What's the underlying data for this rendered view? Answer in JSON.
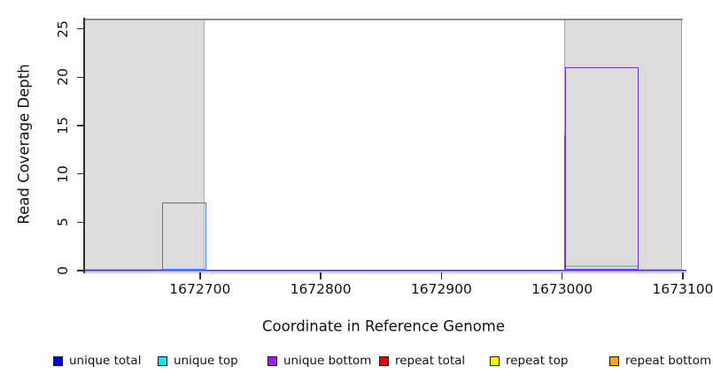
{
  "chart_data": {
    "type": "area",
    "title": "",
    "xlabel": "Coordinate in Reference Genome",
    "ylabel": "Read Coverage Depth",
    "xlim": [
      1672604,
      1673103
    ],
    "ylim": [
      0,
      26
    ],
    "grid": false,
    "x_ticks": [
      1672700,
      1672800,
      1672900,
      1673000,
      1673100
    ],
    "y_ticks": [
      0,
      5,
      10,
      15,
      20,
      25
    ],
    "legend_position": "bottom",
    "legend": [
      {
        "label": "unique total",
        "color": "#0000f0"
      },
      {
        "label": "unique top",
        "color": "#00eeee"
      },
      {
        "label": "unique bottom",
        "color": "#a01ff0"
      },
      {
        "label": "repeat total",
        "color": "#f00000"
      },
      {
        "label": "repeat top",
        "color": "#ffff00"
      },
      {
        "label": "repeat bottom",
        "color": "#ffa500"
      }
    ],
    "masked_regions": [
      {
        "start": 1672604,
        "end": 1672704
      },
      {
        "start": 1673002,
        "end": 1673100
      }
    ],
    "coverage_features": [
      {
        "name": "total-coverage-top-line",
        "depth": 26,
        "start": 1672604,
        "end": 1673100
      },
      {
        "name": "unique-total-block",
        "start": 1672669,
        "end": 1672706,
        "depth": 7
      },
      {
        "name": "unique-bottom-block",
        "start": 1673003,
        "end": 1673064,
        "depth": 21
      },
      {
        "name": "unique-total-step",
        "x": 1673002,
        "from": 0,
        "to": 14
      },
      {
        "name": "repeat-total-zero-segment",
        "start": 1672669,
        "end": 1672705,
        "depth": 0
      },
      {
        "name": "green-zero-segment",
        "start": 1673003,
        "end": 1673064,
        "depth": 0
      },
      {
        "name": "zero-baseline",
        "start": 1672604,
        "end": 1673103,
        "depth": 0
      }
    ],
    "render_items": [
      {
        "name": "masked-region-left",
        "type": "fillrect",
        "x0": 1672604,
        "x1": 1672704,
        "y0": 0,
        "y1": 26,
        "fill": "#dcdcdc",
        "color": "#a9a9a9",
        "lw": 1
      },
      {
        "name": "masked-region-right",
        "type": "fillrect",
        "x0": 1673002,
        "x1": 1673100,
        "y0": 0,
        "y1": 26,
        "fill": "#dcdcdc",
        "color": "#a9a9a9",
        "lw": 1
      },
      {
        "name": "total-coverage-top-line",
        "type": "hline",
        "x0": 1672604,
        "x1": 1673100,
        "y": 26,
        "color": "#8c8c8c",
        "lw": 1.5
      },
      {
        "name": "zero-baseline-halo",
        "type": "hline",
        "x0": 1672604,
        "x1": 1673103,
        "y": -0.25,
        "color": "#c0b8f4",
        "lw": 1.2
      },
      {
        "name": "zero-baseline",
        "type": "hline",
        "x0": 1672604,
        "x1": 1673103,
        "y": 0,
        "color": "#6156dd",
        "lw": 2
      },
      {
        "name": "repeat-total-zero-segment",
        "type": "hline",
        "x0": 1672669,
        "x1": 1672705,
        "y": 0.1,
        "color": "#e06060",
        "lw": 1.8
      },
      {
        "name": "green-zero-segment",
        "type": "hline",
        "x0": 1673003,
        "x1": 1673064,
        "y": 0.45,
        "color": "#8ccf8c",
        "lw": 1.5
      },
      {
        "name": "unique-total-step",
        "type": "vline",
        "x": 1673002,
        "y0": 0,
        "y1": 14,
        "color": "#5049e9",
        "lw": 1.6
      },
      {
        "name": "unique-total-block",
        "type": "rect",
        "x0": 1672669,
        "x1": 1672706,
        "y0": 0,
        "y1": 7,
        "color": "#347af8",
        "lw": 1.8
      },
      {
        "name": "unique-bottom-block",
        "type": "rect",
        "x0": 1673003,
        "x1": 1673064,
        "y0": 0,
        "y1": 21,
        "color": "#6e2ee5",
        "lw": 1.8
      }
    ]
  }
}
